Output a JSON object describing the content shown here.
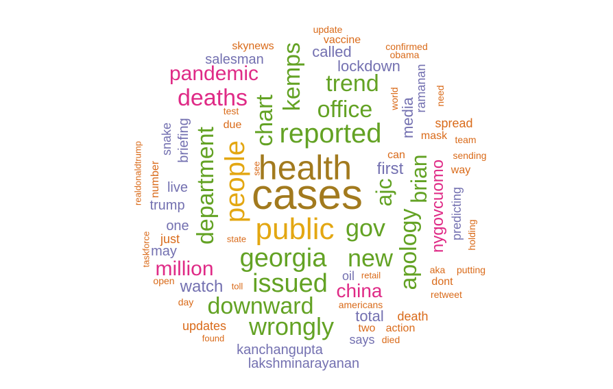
{
  "colors": {
    "gold": "#a27a1e",
    "yellow": "#e3a712",
    "green": "#63a224",
    "pink": "#df2a86",
    "orange": "#d96a19",
    "purple": "#7370b0"
  },
  "words": {
    "cases": "cases",
    "health": "health",
    "public": "public",
    "people": "people",
    "reported": "reported",
    "georgia": "georgia",
    "issued": "issued",
    "wrongly": "wrongly",
    "downward": "downward",
    "department": "department",
    "gov": "gov",
    "new": "new",
    "apology": "apology",
    "office": "office",
    "trend": "trend",
    "kemps": "kemps",
    "chart": "chart",
    "brian": "brian",
    "ajc": "ajc",
    "deaths": "deaths",
    "pandemic": "pandemic",
    "million": "million",
    "china": "china",
    "nygovcuomo": "nygovcuomo",
    "first": "first",
    "lockdown": "lockdown",
    "called": "called",
    "salesman": "salesman",
    "skynews": "skynews",
    "vaccine": "vaccine",
    "update": "update",
    "confirmed": "confirmed",
    "obama": "obama",
    "ramanan": "ramanan",
    "media": "media",
    "world": "world",
    "need": "need",
    "spread": "spread",
    "mask": "mask",
    "team": "team",
    "sending": "sending",
    "way": "way",
    "can": "can",
    "test": "test",
    "due": "due",
    "snake": "snake",
    "briefing": "briefing",
    "realdonaldtrump": "realdonaldtrump",
    "number": "number",
    "live": "live",
    "trump": "trump",
    "one": "one",
    "just": "just",
    "may": "may",
    "taskforce": "taskforce",
    "open": "open",
    "watch": "watch",
    "day": "day",
    "toll": "toll",
    "see": "see",
    "state": "state",
    "predicting": "predicting",
    "holding": "holding",
    "aka": "aka",
    "putting": "putting",
    "dont": "dont",
    "retweet": "retweet",
    "oil": "oil",
    "retail": "retail",
    "americans": "americans",
    "total": "total",
    "death": "death",
    "two": "two",
    "action": "action",
    "says": "says",
    "died": "died",
    "updates": "updates",
    "found": "found",
    "kanchangupta": "kanchangupta",
    "lakshminarayanan": "lakshminarayanan"
  }
}
